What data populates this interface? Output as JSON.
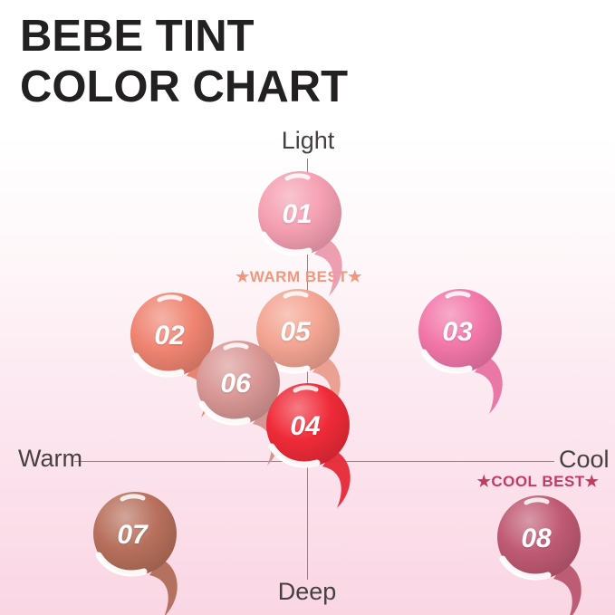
{
  "title": {
    "line1": "BEBE TINT",
    "line2": "COLOR CHART"
  },
  "annotations": {
    "warm_best": "★WARM BEST★",
    "cool_best": "★COOL BEST★"
  },
  "colors": {
    "title_text": "#232021",
    "axis_text": "#474043",
    "axis_line": "#8A8A8A",
    "warm_best": "#F0987F",
    "cool_best": "#C43B61",
    "background_top": "#FFFFFF",
    "background_bottom": "#FAD6E3",
    "swatch_number_text": "#FFFFFF"
  },
  "chart_data": {
    "type": "scatter",
    "title": "BEBE TINT COLOR CHART",
    "x_axis": {
      "left_label": "Warm",
      "right_label": "Cool",
      "range": [
        -1,
        1
      ]
    },
    "y_axis": {
      "top_label": "Light",
      "bottom_label": "Deep",
      "range": [
        -1,
        1
      ]
    },
    "legend": "none",
    "grid": "off",
    "points": [
      {
        "label": "01",
        "x": -0.03,
        "y": 0.82,
        "color": "#F5A0B3",
        "annotation": ""
      },
      {
        "label": "02",
        "x": -0.55,
        "y": 0.42,
        "color": "#EF8471",
        "annotation": ""
      },
      {
        "label": "03",
        "x": 0.62,
        "y": 0.43,
        "color": "#F277A9",
        "annotation": ""
      },
      {
        "label": "05",
        "x": -0.04,
        "y": 0.43,
        "color": "#F3A492",
        "annotation": "WARM BEST"
      },
      {
        "label": "06",
        "x": -0.28,
        "y": 0.26,
        "color": "#D89795",
        "annotation": ""
      },
      {
        "label": "04",
        "x": 0.0,
        "y": 0.12,
        "color": "#EF2B38",
        "annotation": ""
      },
      {
        "label": "07",
        "x": -0.7,
        "y": -0.24,
        "color": "#B7705C",
        "annotation": ""
      },
      {
        "label": "08",
        "x": 0.94,
        "y": -0.25,
        "color": "#C05A74",
        "annotation": "COOL BEST"
      }
    ]
  }
}
